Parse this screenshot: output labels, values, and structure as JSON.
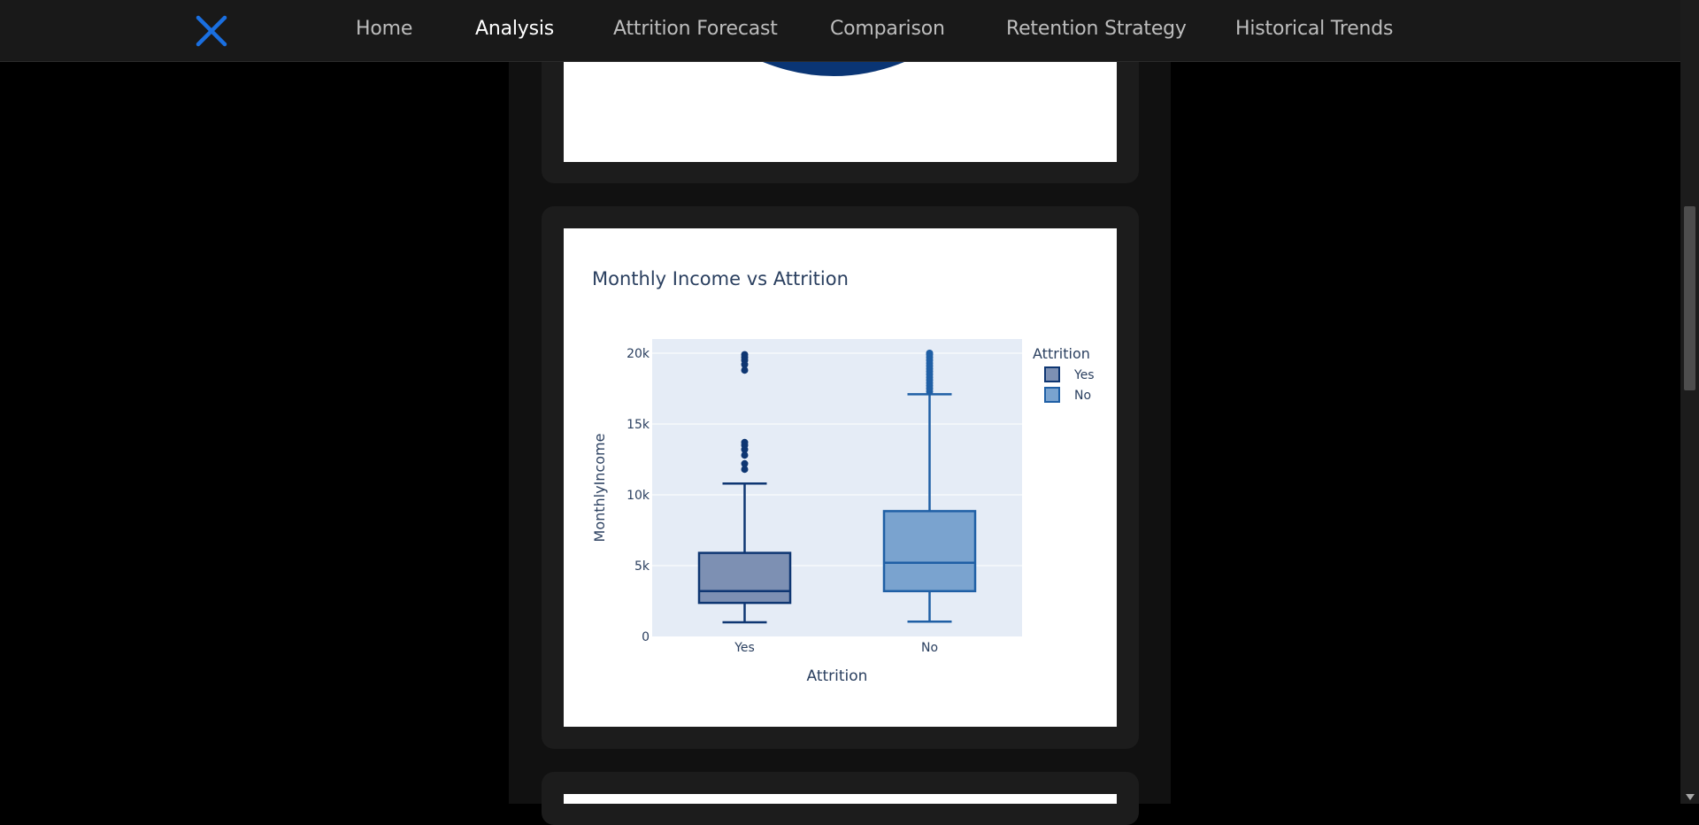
{
  "nav": {
    "items": [
      {
        "label": "Home",
        "active": false
      },
      {
        "label": "Analysis",
        "active": true
      },
      {
        "label": "Attrition Forecast",
        "active": false
      },
      {
        "label": "Comparison",
        "active": false
      },
      {
        "label": "Retention Strategy",
        "active": false
      },
      {
        "label": "Historical Trends",
        "active": false
      }
    ],
    "logo_icon": "x-logo-icon",
    "accent_color": "#1a6fe0"
  },
  "colors": {
    "page_bg": "#000000",
    "nav_bg": "#191919",
    "card_bg": "#1c1c1c",
    "plot_bg": "#e5ecf6",
    "yes_fill": "#7d90b3",
    "yes_line": "#0e3672",
    "no_fill": "#7aa3cf",
    "no_line": "#1f5fa5",
    "pie_color": "#0a3574"
  },
  "chart_data": {
    "type": "box",
    "title": "Monthly Income vs Attrition",
    "xlabel": "Attrition",
    "ylabel": "MonthlyIncome",
    "categories": [
      "Yes",
      "No"
    ],
    "ylim": [
      0,
      21000
    ],
    "yticks": [
      0,
      5000,
      10000,
      15000,
      20000
    ],
    "ytick_labels": [
      "0",
      "5k",
      "10k",
      "15k",
      "20k"
    ],
    "grid": true,
    "legend": {
      "title": "Attrition",
      "placement": "top-right",
      "entries": [
        "Yes",
        "No"
      ]
    },
    "series": [
      {
        "name": "Yes",
        "min": 1000,
        "q1": 2370,
        "median": 3200,
        "q3": 5900,
        "max": 10800,
        "outliers": [
          11800,
          12200,
          12800,
          13200,
          13500,
          13700,
          18800,
          19200,
          19500,
          19700,
          19900
        ]
      },
      {
        "name": "No",
        "min": 1050,
        "q1": 3200,
        "median": 5200,
        "q3": 8850,
        "max": 17100,
        "outliers": [
          17300,
          17500,
          17700,
          17900,
          18100,
          18300,
          18500,
          18700,
          18900,
          19100,
          19300,
          19500,
          19700,
          19900,
          20000
        ]
      }
    ]
  }
}
